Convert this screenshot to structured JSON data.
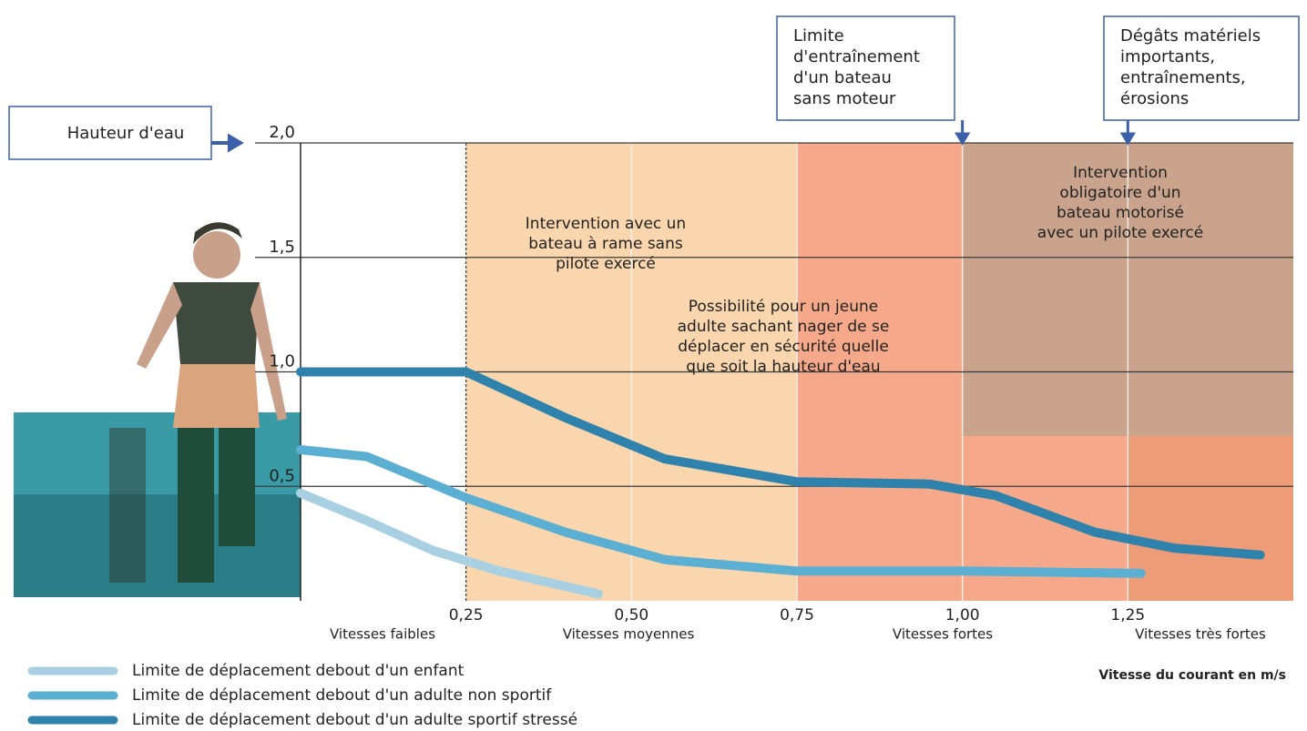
{
  "chart_data": {
    "type": "line",
    "ylabel": "Hauteur d'eau",
    "xlabel": "Vitesse du courant en m/s",
    "xlim": [
      0,
      1.5
    ],
    "ylim": [
      0,
      2
    ],
    "xticks": [
      {
        "value": 0.25,
        "label": "0,25"
      },
      {
        "value": 0.5,
        "label": "0,50"
      },
      {
        "value": 0.75,
        "label": "0,75"
      },
      {
        "value": 1.0,
        "label": "1,00"
      },
      {
        "value": 1.25,
        "label": "1,25"
      }
    ],
    "yticks": [
      {
        "value": 0.5,
        "label": "0,5"
      },
      {
        "value": 1.0,
        "label": "1,0"
      },
      {
        "value": 1.5,
        "label": "1,5"
      },
      {
        "value": 2.0,
        "label": "2,0"
      }
    ],
    "grid": true,
    "speed_classes": [
      "Vitesses faibles",
      "Vitesses moyennes",
      "Vitesses fortes",
      "Vitesses très fortes"
    ],
    "zones": [
      {
        "x": [
          0.25,
          0.75
        ],
        "y": [
          0,
          2
        ],
        "color": "#f9d6ae"
      },
      {
        "x": [
          0.75,
          1.25
        ],
        "y": [
          0,
          2
        ],
        "color": "#f5a98a"
      },
      {
        "x": [
          1.25,
          1.5
        ],
        "y": [
          0,
          2
        ],
        "color": "#ee9b78"
      },
      {
        "x": [
          1.0,
          1.5
        ],
        "y": [
          0.72,
          2
        ],
        "color": "#c9a38c"
      }
    ],
    "markers": [
      {
        "x": 1.0,
        "lines": [
          "Limite",
          "d'entraînement",
          "d'un bateau",
          "sans moteur"
        ]
      },
      {
        "x": 1.25,
        "lines": [
          "Dégâts matériels",
          "importants,",
          "entraînements,",
          "érosions"
        ]
      }
    ],
    "annotations": [
      {
        "lines": [
          "Intervention avec un",
          "bateau à rame sans",
          "pilote exercé"
        ]
      },
      {
        "lines": [
          "Possibilité pour un jeune",
          "adulte sachant nager de se",
          "déplacer en sécurité quelle",
          "que soit la hauteur d'eau"
        ]
      },
      {
        "lines": [
          "Intervention",
          "obligatoire d'un",
          "bateau motorisé",
          "avec un pilote exercé"
        ]
      }
    ],
    "series": [
      {
        "name": "Limite de déplacement debout d'un enfant",
        "color": "#a8d0e2",
        "x": [
          0,
          0.1,
          0.2,
          0.3,
          0.45
        ],
        "values": [
          0.47,
          0.35,
          0.22,
          0.13,
          0.03
        ]
      },
      {
        "name": "Limite de déplacement debout d'un adulte non sportif",
        "color": "#5bafd2",
        "x": [
          0,
          0.1,
          0.25,
          0.4,
          0.55,
          0.75,
          1.0,
          1.27
        ],
        "values": [
          0.66,
          0.63,
          0.45,
          0.3,
          0.18,
          0.13,
          0.13,
          0.12
        ]
      },
      {
        "name": "Limite de déplacement debout d'un adulte sportif stressé",
        "color": "#2f82ab",
        "x": [
          0,
          0.25,
          0.4,
          0.55,
          0.75,
          0.95,
          1.05,
          1.2,
          1.32,
          1.45
        ],
        "values": [
          1.0,
          1.0,
          0.8,
          0.62,
          0.52,
          0.51,
          0.46,
          0.3,
          0.23,
          0.2
        ]
      }
    ]
  }
}
